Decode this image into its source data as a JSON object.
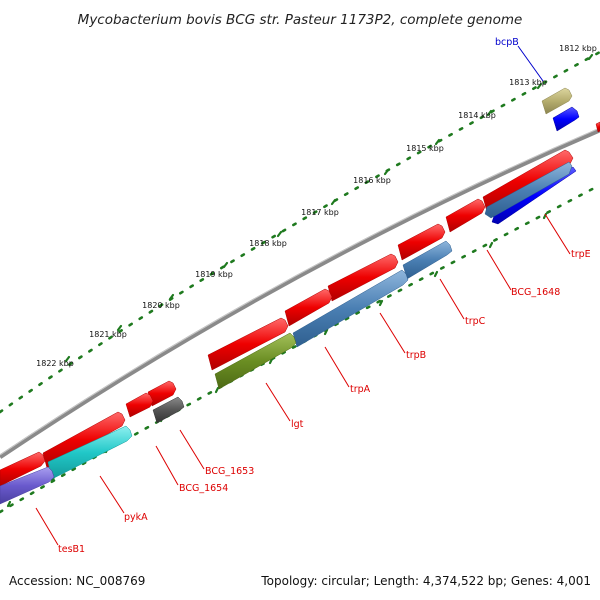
{
  "title": "Mycobacterium bovis BCG str. Pasteur 1173P2, complete genome",
  "footer": {
    "accession": "Accession: NC_008769",
    "topology": "Topology: circular; Length: 4,374,522 bp; Genes: 4,001"
  },
  "ruler": {
    "labels": [
      "1812 kbp",
      "1813 kbp",
      "1814 kbp",
      "1815 kbp",
      "1816 kbp",
      "1817 kbp",
      "1818 kbp",
      "1819 kbp",
      "1820 kbp",
      "1821 kbp",
      "1822 kbp"
    ]
  },
  "gene_labels": [
    "bcpB",
    "trpE",
    "BCG_1648",
    "trpC",
    "trpB",
    "trpA",
    "lgt",
    "BCG_1653",
    "BCG_1654",
    "pykA",
    "tesB1"
  ],
  "colors": {
    "backbone": "#8a8a8a",
    "ruler_dots": "#1f7a1f",
    "gene_red": "#ee0000",
    "label_red": "#dd0000",
    "label_blue": "#0000cc",
    "steelblue": "#4a7fb3",
    "olive": "#6b8e23",
    "cyan": "#21c8c8",
    "purple": "#6a5acd",
    "gray": "#555555",
    "khaki": "#b5ad6e",
    "blue": "#0000ff"
  }
}
